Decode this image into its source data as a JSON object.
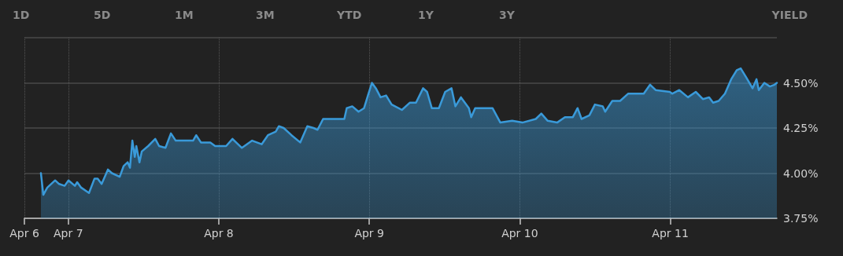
{
  "chart_data": {
    "type": "area",
    "annotations": [
      "1D",
      "5D",
      "1M",
      "3M",
      "YTD",
      "1Y",
      "3Y",
      "YIELD"
    ],
    "x": [
      "--04-06T19:38",
      "--04-06T20:01",
      "--04-06T20:39",
      "--04-06T21:54",
      "--04-06T22:32",
      "--04-06T23:25",
      "--04-07T00:02",
      "--04-07T01:03",
      "--04-07T01:25",
      "--04-07T02:03",
      "--04-07T03:18",
      "--04-07T04:11",
      "--04-07T04:41",
      "--04-07T05:19",
      "--04-07T06:19",
      "--04-07T06:57",
      "--04-07T08:12",
      "--04-07T08:50",
      "--04-07T09:28",
      "--04-07T09:50",
      "--04-07T10:13",
      "--04-07T10:36",
      "--04-07T10:51",
      "--04-07T11:21",
      "--04-07T11:43",
      "--04-07T12:44",
      "--04-07T13:52",
      "--04-07T14:29",
      "--04-07T15:30",
      "--04-07T16:22",
      "--04-07T17:08",
      "--04-07T19:54",
      "--04-07T20:24",
      "--04-07T21:09",
      "--04-07T22:39",
      "--04-07T23:25",
      "--04-08T01:10",
      "--04-08T02:11",
      "--04-08T03:41",
      "--04-08T05:19",
      "--04-08T06:50",
      "--04-08T07:50",
      "--04-08T09:05",
      "--04-08T09:35",
      "--04-08T10:21",
      "--04-08T11:36",
      "--04-08T12:59",
      "--04-08T14:07",
      "--04-08T15:07",
      "--04-08T15:45",
      "--04-08T16:38",
      "--04-08T20:01",
      "--04-08T20:24",
      "--04-08T21:17",
      "--04-08T22:17",
      "--04-08T23:10",
      "--04-08T23:47",
      "--04-09T00:25",
      "--04-09T01:03",
      "--04-09T01:48",
      "--04-09T02:41",
      "--04-09T03:34",
      "--04-09T05:12",
      "--04-09T06:27",
      "--04-09T07:27",
      "--04-09T08:35",
      "--04-09T09:13",
      "--04-09T09:58",
      "--04-09T11:06",
      "--04-09T12:06",
      "--04-09T13:07",
      "--04-09T13:44",
      "--04-09T14:37",
      "--04-09T15:53",
      "--04-09T16:15",
      "--04-09T16:53",
      "--04-09T19:39",
      "--04-09T20:54",
      "--04-09T22:47",
      "--04-10T00:25",
      "--04-10T02:33",
      "--04-10T03:26",
      "--04-10T04:27",
      "--04-10T05:57",
      "--04-10T07:12",
      "--04-10T08:28",
      "--04-10T09:13",
      "--04-10T09:51",
      "--04-10T11:06",
      "--04-10T11:59",
      "--04-10T13:14",
      "--04-10T13:37",
      "--04-10T14:45",
      "--04-10T16:00",
      "--04-10T17:16",
      "--04-10T19:46",
      "--04-10T20:47",
      "--04-10T21:40",
      "--04-10T23:55",
      "--04-11T00:18",
      "--04-11T01:26",
      "--04-11T02:49",
      "--04-11T04:04",
      "--04-11T05:12",
      "--04-11T06:12",
      "--04-11T06:50",
      "--04-11T07:43",
      "--04-11T08:43",
      "--04-11T09:43",
      "--04-11T10:36",
      "--04-11T11:14",
      "--04-11T12:07",
      "--04-11T13:07",
      "--04-11T13:45",
      "--04-11T14:07",
      "--04-11T15:00",
      "--04-11T15:53",
      "--04-11T16:38",
      "--04-11T17:00"
    ],
    "series": [
      {
        "color": "#3a9ad9",
        "values": [
          4.0,
          3.88,
          3.92,
          3.96,
          3.94,
          3.93,
          3.96,
          3.93,
          3.95,
          3.92,
          3.89,
          3.97,
          3.97,
          3.94,
          4.02,
          4.0,
          3.98,
          4.04,
          4.06,
          4.03,
          4.18,
          4.09,
          4.15,
          4.06,
          4.12,
          4.15,
          4.19,
          4.15,
          4.14,
          4.22,
          4.18,
          4.18,
          4.21,
          4.17,
          4.17,
          4.15,
          4.15,
          4.19,
          4.14,
          4.18,
          4.16,
          4.21,
          4.23,
          4.26,
          4.25,
          4.21,
          4.17,
          4.26,
          4.25,
          4.24,
          4.3,
          4.3,
          4.36,
          4.37,
          4.34,
          4.36,
          4.43,
          4.5,
          4.47,
          4.42,
          4.43,
          4.38,
          4.35,
          4.39,
          4.39,
          4.47,
          4.45,
          4.36,
          4.36,
          4.45,
          4.47,
          4.37,
          4.42,
          4.36,
          4.31,
          4.36,
          4.36,
          4.28,
          4.29,
          4.28,
          4.3,
          4.33,
          4.29,
          4.28,
          4.31,
          4.31,
          4.36,
          4.3,
          4.32,
          4.38,
          4.37,
          4.34,
          4.4,
          4.4,
          4.44,
          4.44,
          4.49,
          4.46,
          4.45,
          4.44,
          4.46,
          4.42,
          4.45,
          4.41,
          4.42,
          4.39,
          4.4,
          4.44,
          4.52,
          4.57,
          4.58,
          4.53,
          4.47,
          4.52,
          4.46,
          4.5,
          4.48,
          4.49,
          4.5
        ]
      }
    ],
    "xlim": [
      "--04-06T17:00",
      "--04-11T17:00"
    ],
    "xticks": [
      {
        "value": "--04-06T17:00",
        "label": "Apr 6"
      },
      {
        "value": "--04-07",
        "label": "Apr 7"
      },
      {
        "value": "--04-08",
        "label": "Apr 8"
      },
      {
        "value": "--04-09",
        "label": "Apr 9"
      },
      {
        "value": "--04-10",
        "label": "Apr 10"
      },
      {
        "value": "--04-11",
        "label": "Apr 11"
      }
    ],
    "ylim": [
      3.75,
      4.75
    ],
    "yticks": [
      {
        "value": 3.75,
        "label": "3.75%"
      },
      {
        "value": 4.0,
        "label": "4.00%"
      },
      {
        "value": 4.25,
        "label": "4.25%"
      },
      {
        "value": 4.5,
        "label": "4.50%"
      },
      {
        "value": 4.75,
        "label": null
      }
    ],
    "grid": true,
    "marker": "none",
    "line_style": "solid"
  }
}
